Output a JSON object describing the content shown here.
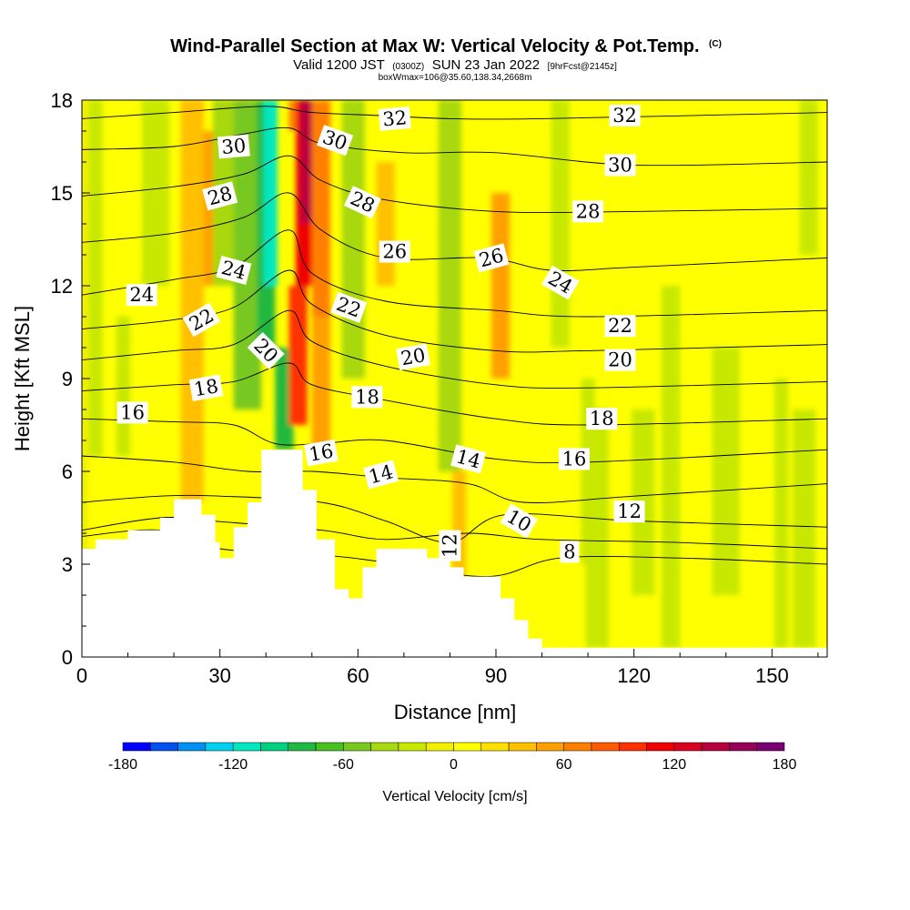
{
  "titles": {
    "main": "Wind-Parallel Section at Max W: Vertical Velocity & Pot.Temp.",
    "copyright": "(C)",
    "valid_prefix": "Valid 1200 JST",
    "valid_utc": "(0300Z)",
    "valid_date": "SUN 23 Jan 2022",
    "forecast": "[9hrFcst@2145z]",
    "box": "boxWmax=106@35.60,138.34,2668m"
  },
  "chart_data": {
    "type": "heatmap",
    "overlay": "contour",
    "title": "Wind-Parallel Section at Max W: Vertical Velocity & Pot.Temp.",
    "xlabel": "Distance [nm]",
    "ylabel": "Height [Kft MSL]",
    "xlim": [
      0,
      162
    ],
    "ylim": [
      0,
      18
    ],
    "x_ticks": [
      0,
      30,
      60,
      90,
      120,
      150
    ],
    "y_ticks": [
      0,
      3,
      6,
      9,
      12,
      15,
      18
    ],
    "colorbar": {
      "label": "Vertical Velocity [cm/s]",
      "ticks": [
        -180,
        -120,
        -60,
        0,
        60,
        120,
        180
      ],
      "bounds": [
        -180,
        -165,
        -150,
        -135,
        -120,
        -105,
        -90,
        -75,
        -60,
        -45,
        -30,
        -15,
        0,
        15,
        30,
        45,
        60,
        75,
        90,
        105,
        120,
        135,
        150,
        165,
        180
      ],
      "colors": [
        "#0000ff",
        "#0050f0",
        "#0090f0",
        "#00d0f0",
        "#00e8c0",
        "#00d080",
        "#20b840",
        "#48c020",
        "#78c820",
        "#a8d810",
        "#c8e800",
        "#f0f000",
        "#ffff00",
        "#ffe000",
        "#ffc000",
        "#ffa000",
        "#ff8000",
        "#ff5a00",
        "#ff3000",
        "#f00000",
        "#d80020",
        "#b8003c",
        "#960058",
        "#780070"
      ]
    },
    "terrain_profile": [
      [
        0,
        3.5
      ],
      [
        3,
        3.5
      ],
      [
        3,
        3.8
      ],
      [
        10,
        3.8
      ],
      [
        10,
        4.1
      ],
      [
        17,
        4.1
      ],
      [
        17,
        4.5
      ],
      [
        20,
        4.5
      ],
      [
        20,
        5.1
      ],
      [
        26,
        5.1
      ],
      [
        26,
        4.6
      ],
      [
        29,
        4.6
      ],
      [
        29,
        3.7
      ],
      [
        30,
        3.7
      ],
      [
        30,
        3.2
      ],
      [
        33,
        3.2
      ],
      [
        33,
        4.2
      ],
      [
        36,
        4.2
      ],
      [
        36,
        5.0
      ],
      [
        39,
        5.0
      ],
      [
        39,
        6.7
      ],
      [
        48,
        6.7
      ],
      [
        48,
        5.4
      ],
      [
        51,
        5.4
      ],
      [
        51,
        3.8
      ],
      [
        55,
        3.8
      ],
      [
        55,
        2.2
      ],
      [
        58,
        2.2
      ],
      [
        58,
        1.9
      ],
      [
        61,
        1.9
      ],
      [
        61,
        2.9
      ],
      [
        64,
        2.9
      ],
      [
        64,
        3.5
      ],
      [
        75,
        3.5
      ],
      [
        75,
        3.2
      ],
      [
        80,
        3.2
      ],
      [
        80,
        2.9
      ],
      [
        83,
        2.9
      ],
      [
        83,
        2.6
      ],
      [
        91,
        2.6
      ],
      [
        91,
        1.9
      ],
      [
        94,
        1.9
      ],
      [
        94,
        1.2
      ],
      [
        97,
        1.2
      ],
      [
        97,
        0.6
      ],
      [
        100,
        0.6
      ],
      [
        100,
        0.3
      ],
      [
        162,
        0.3
      ]
    ],
    "velocity_features": [
      {
        "x": 0,
        "y0": 0,
        "y1": 18,
        "width": 3,
        "w": -15
      },
      {
        "x": 3,
        "y0": 6.5,
        "y1": 18,
        "width": 3,
        "w": -30
      },
      {
        "x": 9,
        "y0": 6.5,
        "y1": 11,
        "width": 3,
        "w": -30
      },
      {
        "x": 16,
        "y0": 12,
        "y1": 18,
        "width": 6,
        "w": -30
      },
      {
        "x": 24,
        "y0": 5,
        "y1": 18,
        "width": 5,
        "w": 30
      },
      {
        "x": 28,
        "y0": 12,
        "y1": 17,
        "width": 3,
        "w": 45
      },
      {
        "x": 32,
        "y0": 12,
        "y1": 18,
        "width": 7,
        "w": -45
      },
      {
        "x": 36,
        "y0": 8,
        "y1": 18,
        "width": 6,
        "w": -60
      },
      {
        "x": 40,
        "y0": 10,
        "y1": 18,
        "width": 4,
        "w": -90
      },
      {
        "x": 41,
        "y0": 12,
        "y1": 18,
        "width": 3,
        "w": -120
      },
      {
        "x": 44,
        "y0": 6.7,
        "y1": 10,
        "width": 4,
        "w": -90
      },
      {
        "x": 46,
        "y0": 17,
        "y1": 18,
        "width": 2,
        "w": 60
      },
      {
        "x": 49,
        "y0": 12,
        "y1": 18,
        "width": 5,
        "w": 105
      },
      {
        "x": 49,
        "y0": 14,
        "y1": 18,
        "width": 3,
        "w": 135
      },
      {
        "x": 47,
        "y0": 7.5,
        "y1": 12,
        "width": 4,
        "w": 90
      },
      {
        "x": 52,
        "y0": 11,
        "y1": 18,
        "width": 4,
        "w": 60
      },
      {
        "x": 52,
        "y0": 6.7,
        "y1": 11,
        "width": 4,
        "w": 45
      },
      {
        "x": 59,
        "y0": 9,
        "y1": 18,
        "width": 5,
        "w": -45
      },
      {
        "x": 66,
        "y0": 12,
        "y1": 16,
        "width": 4,
        "w": 30
      },
      {
        "x": 80,
        "y0": 6,
        "y1": 18,
        "width": 5,
        "w": -45
      },
      {
        "x": 82,
        "y0": 2.5,
        "y1": 6,
        "width": 3,
        "w": 30
      },
      {
        "x": 91,
        "y0": 9,
        "y1": 15,
        "width": 4,
        "w": 45
      },
      {
        "x": 104,
        "y0": 10,
        "y1": 18,
        "width": 4,
        "w": -30
      },
      {
        "x": 110,
        "y0": 3,
        "y1": 9,
        "width": 3,
        "w": -30
      },
      {
        "x": 112,
        "y0": 0.3,
        "y1": 8,
        "width": 5,
        "w": -30
      },
      {
        "x": 122,
        "y0": 2,
        "y1": 8,
        "width": 5,
        "w": -30
      },
      {
        "x": 128,
        "y0": 0.3,
        "y1": 12,
        "width": 4,
        "w": -30
      },
      {
        "x": 140,
        "y0": 2,
        "y1": 10,
        "width": 6,
        "w": -30
      },
      {
        "x": 152,
        "y0": 0.3,
        "y1": 9,
        "width": 3,
        "w": -30
      },
      {
        "x": 158,
        "y0": 13,
        "y1": 18,
        "width": 4,
        "w": -30
      },
      {
        "x": 157,
        "y0": 0.3,
        "y1": 8,
        "width": 5,
        "w": -30
      }
    ],
    "theta_contours": [
      {
        "value": 32,
        "points": [
          [
            0,
            17.4
          ],
          [
            20,
            17.6
          ],
          [
            40,
            17.8
          ],
          [
            50,
            17.6
          ],
          [
            65,
            17.5
          ],
          [
            80,
            17.4
          ],
          [
            100,
            17.4
          ],
          [
            162,
            17.6
          ]
        ]
      },
      {
        "value": 30,
        "points": [
          [
            0,
            16.4
          ],
          [
            20,
            16.5
          ],
          [
            35,
            16.9
          ],
          [
            45,
            17.1
          ],
          [
            52,
            16.6
          ],
          [
            70,
            16.3
          ],
          [
            90,
            16.3
          ],
          [
            120,
            15.9
          ],
          [
            162,
            16.0
          ]
        ]
      },
      {
        "value": 28,
        "points": [
          [
            0,
            14.9
          ],
          [
            20,
            15.2
          ],
          [
            35,
            15.6
          ],
          [
            45,
            16.2
          ],
          [
            52,
            15.4
          ],
          [
            65,
            14.8
          ],
          [
            90,
            14.4
          ],
          [
            120,
            14.4
          ],
          [
            162,
            14.5
          ]
        ]
      },
      {
        "value": 26,
        "points": [
          [
            0,
            13.4
          ],
          [
            20,
            13.7
          ],
          [
            35,
            14.2
          ],
          [
            45,
            15.0
          ],
          [
            52,
            13.8
          ],
          [
            66,
            12.9
          ],
          [
            88,
            12.9
          ],
          [
            102,
            12.5
          ],
          [
            120,
            12.6
          ],
          [
            162,
            12.9
          ]
        ]
      },
      {
        "value": 24,
        "points": [
          [
            0,
            11.7
          ],
          [
            20,
            12.2
          ],
          [
            33,
            12.6
          ],
          [
            45,
            13.8
          ],
          [
            50,
            12.4
          ],
          [
            66,
            11.5
          ],
          [
            90,
            11.2
          ],
          [
            110,
            11.0
          ],
          [
            162,
            11.2
          ]
        ]
      },
      {
        "value": 22,
        "points": [
          [
            0,
            10.6
          ],
          [
            20,
            10.9
          ],
          [
            33,
            11.3
          ],
          [
            45,
            12.5
          ],
          [
            50,
            11.4
          ],
          [
            66,
            10.4
          ],
          [
            90,
            9.9
          ],
          [
            110,
            9.9
          ],
          [
            162,
            10.1
          ]
        ]
      },
      {
        "value": 20,
        "points": [
          [
            0,
            9.6
          ],
          [
            20,
            9.9
          ],
          [
            33,
            10.1
          ],
          [
            45,
            11.2
          ],
          [
            50,
            10.2
          ],
          [
            66,
            9.4
          ],
          [
            90,
            8.8
          ],
          [
            110,
            8.7
          ],
          [
            162,
            8.9
          ]
        ]
      },
      {
        "value": 18,
        "points": [
          [
            0,
            8.6
          ],
          [
            20,
            8.8
          ],
          [
            33,
            8.9
          ],
          [
            45,
            9.5
          ],
          [
            50,
            8.8
          ],
          [
            66,
            8.3
          ],
          [
            90,
            7.7
          ],
          [
            110,
            7.5
          ],
          [
            162,
            7.7
          ]
        ]
      },
      {
        "value": 16,
        "points": [
          [
            0,
            7.7
          ],
          [
            20,
            7.6
          ],
          [
            33,
            7.5
          ],
          [
            42,
            6.9
          ],
          [
            52,
            6.9
          ],
          [
            66,
            7.0
          ],
          [
            90,
            6.4
          ],
          [
            110,
            6.3
          ],
          [
            162,
            6.7
          ]
        ]
      },
      {
        "value": 14,
        "points": [
          [
            0,
            6.5
          ],
          [
            20,
            6.3
          ],
          [
            36,
            6.0
          ],
          [
            50,
            6.0
          ],
          [
            66,
            5.8
          ],
          [
            84,
            5.6
          ],
          [
            96,
            5.0
          ],
          [
            120,
            5.2
          ],
          [
            162,
            5.6
          ]
        ]
      },
      {
        "value": 12,
        "points": [
          [
            0,
            5.0
          ],
          [
            17,
            5.2
          ],
          [
            30,
            5.2
          ],
          [
            52,
            5.0
          ],
          [
            66,
            4.4
          ],
          [
            80,
            3.7
          ],
          [
            92,
            4.6
          ],
          [
            120,
            4.4
          ],
          [
            162,
            4.2
          ]
        ]
      },
      {
        "value": 10,
        "points": [
          [
            0,
            4.1
          ],
          [
            17,
            4.5
          ],
          [
            28,
            4.4
          ],
          [
            52,
            4.1
          ],
          [
            66,
            3.8
          ],
          [
            84,
            4.0
          ],
          [
            100,
            3.8
          ],
          [
            130,
            3.7
          ],
          [
            162,
            3.5
          ]
        ]
      },
      {
        "value": 8,
        "points": [
          [
            0,
            3.9
          ],
          [
            17,
            4.1
          ],
          [
            30,
            3.5
          ],
          [
            52,
            3.3
          ],
          [
            64,
            3.1
          ],
          [
            88,
            2.6
          ],
          [
            104,
            3.2
          ],
          [
            130,
            3.2
          ],
          [
            162,
            3.0
          ]
        ]
      }
    ],
    "contour_labels": [
      {
        "text": "32",
        "x": 68,
        "y": 17.4,
        "angle": -5
      },
      {
        "text": "32",
        "x": 118,
        "y": 17.5,
        "angle": 0
      },
      {
        "text": "30",
        "x": 33,
        "y": 16.5,
        "angle": -5
      },
      {
        "text": "30",
        "x": 55,
        "y": 16.7,
        "angle": 20
      },
      {
        "text": "30",
        "x": 117,
        "y": 15.9,
        "angle": 0
      },
      {
        "text": "28",
        "x": 30,
        "y": 14.9,
        "angle": -15
      },
      {
        "text": "28",
        "x": 61,
        "y": 14.7,
        "angle": 25
      },
      {
        "text": "28",
        "x": 110,
        "y": 14.4,
        "angle": 0
      },
      {
        "text": "26",
        "x": 68,
        "y": 13.1,
        "angle": 0
      },
      {
        "text": "26",
        "x": 89,
        "y": 12.9,
        "angle": -15
      },
      {
        "text": "24",
        "x": 33,
        "y": 12.5,
        "angle": 15
      },
      {
        "text": "24",
        "x": 13,
        "y": 11.7,
        "angle": 0
      },
      {
        "text": "24",
        "x": 104,
        "y": 12.1,
        "angle": 30
      },
      {
        "text": "22",
        "x": 26,
        "y": 10.9,
        "angle": -30
      },
      {
        "text": "22",
        "x": 58,
        "y": 11.3,
        "angle": 20
      },
      {
        "text": "22",
        "x": 117,
        "y": 10.7,
        "angle": 0
      },
      {
        "text": "20",
        "x": 40,
        "y": 9.9,
        "angle": 45
      },
      {
        "text": "20",
        "x": 72,
        "y": 9.7,
        "angle": -10
      },
      {
        "text": "20",
        "x": 117,
        "y": 9.6,
        "angle": 0
      },
      {
        "text": "18",
        "x": 27,
        "y": 8.7,
        "angle": -10
      },
      {
        "text": "18",
        "x": 62,
        "y": 8.4,
        "angle": 0
      },
      {
        "text": "18",
        "x": 113,
        "y": 7.7,
        "angle": 0
      },
      {
        "text": "16",
        "x": 11,
        "y": 7.9,
        "angle": 0
      },
      {
        "text": "16",
        "x": 52,
        "y": 6.6,
        "angle": -10
      },
      {
        "text": "16",
        "x": 107,
        "y": 6.4,
        "angle": 0
      },
      {
        "text": "14",
        "x": 65,
        "y": 5.9,
        "angle": -15
      },
      {
        "text": "14",
        "x": 84,
        "y": 6.4,
        "angle": 15
      },
      {
        "text": "12",
        "x": 80,
        "y": 3.6,
        "angle": -90
      },
      {
        "text": "12",
        "x": 119,
        "y": 4.7,
        "angle": 0
      },
      {
        "text": "10",
        "x": 95,
        "y": 4.4,
        "angle": 30
      },
      {
        "text": "8",
        "x": 106,
        "y": 3.4,
        "angle": 0
      }
    ]
  }
}
